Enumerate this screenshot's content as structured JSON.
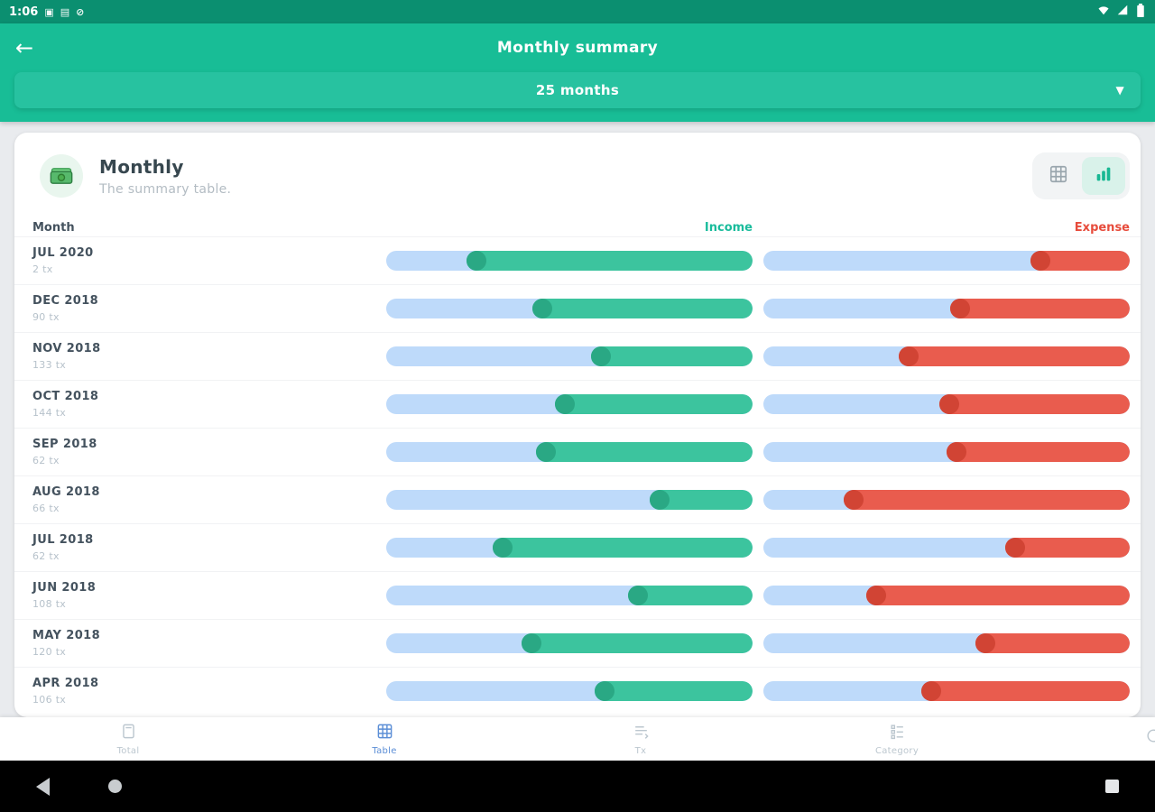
{
  "status_bar": {
    "time": "1:06",
    "left_icons": [
      "notification-square-icon",
      "notification-grid-icon",
      "notification-circle-icon"
    ],
    "right_icons": [
      "wifi-icon",
      "signal-icon",
      "battery-icon"
    ]
  },
  "app_bar": {
    "title": "Monthly summary"
  },
  "period_selector": {
    "value": "25 months"
  },
  "card": {
    "title": "Monthly",
    "subtitle": "The summary table.",
    "columns": {
      "month": "Month",
      "income": "Income",
      "expense": "Expense"
    }
  },
  "rows": [
    {
      "month": "JUL 2020",
      "tx": "2 tx",
      "income_pct": 78,
      "expense_pct": 27
    },
    {
      "month": "DEC 2018",
      "tx": "90 tx",
      "income_pct": 60,
      "expense_pct": 49
    },
    {
      "month": "NOV 2018",
      "tx": "133 tx",
      "income_pct": 44,
      "expense_pct": 63
    },
    {
      "month": "OCT 2018",
      "tx": "144 tx",
      "income_pct": 54,
      "expense_pct": 52
    },
    {
      "month": "SEP 2018",
      "tx": "62 tx",
      "income_pct": 59,
      "expense_pct": 50
    },
    {
      "month": "AUG 2018",
      "tx": "66 tx",
      "income_pct": 28,
      "expense_pct": 78
    },
    {
      "month": "JUL 2018",
      "tx": "62 tx",
      "income_pct": 71,
      "expense_pct": 34
    },
    {
      "month": "JUN 2018",
      "tx": "108 tx",
      "income_pct": 34,
      "expense_pct": 72
    },
    {
      "month": "MAY 2018",
      "tx": "120 tx",
      "income_pct": 63,
      "expense_pct": 42
    },
    {
      "month": "APR 2018",
      "tx": "106 tx",
      "income_pct": 43,
      "expense_pct": 57
    }
  ],
  "chart_data": {
    "type": "bar",
    "title": "Monthly",
    "categories": [
      "JUL 2020",
      "DEC 2018",
      "NOV 2018",
      "OCT 2018",
      "SEP 2018",
      "AUG 2018",
      "JUL 2018",
      "JUN 2018",
      "MAY 2018",
      "APR 2018"
    ],
    "series": [
      {
        "name": "Income",
        "values_pct": [
          78,
          60,
          44,
          54,
          59,
          28,
          71,
          34,
          63,
          43
        ]
      },
      {
        "name": "Expense",
        "values_pct": [
          27,
          49,
          63,
          52,
          50,
          78,
          34,
          72,
          42,
          57
        ]
      }
    ],
    "xlabel": "Month",
    "ylabel": "",
    "legend_position": "top",
    "bar_orientation": "horizontal-right-aligned"
  },
  "bottom_nav": {
    "items": [
      {
        "label": "Total",
        "active": false
      },
      {
        "label": "Table",
        "active": true
      },
      {
        "label": "Tx",
        "active": false
      },
      {
        "label": "Category",
        "active": false
      },
      {
        "label": "",
        "active": false
      }
    ]
  },
  "colors": {
    "status_bar": "#0b8f70",
    "app_bar": "#18bd96",
    "dropdown": "#27c2a0",
    "income": "#3cc49e",
    "income_dark": "#2aa884",
    "expense": "#e95c4e",
    "expense_dark": "#d14434",
    "bar_track": "#bedafa",
    "active_nav": "#5b8ed6"
  }
}
